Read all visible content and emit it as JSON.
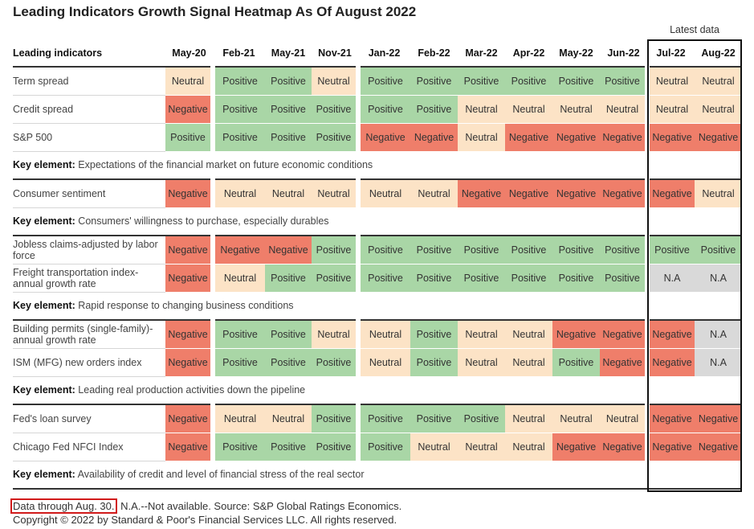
{
  "title": "Leading Indicators Growth Signal Heatmap As Of August 2022",
  "latest_label": "Latest data",
  "chart_data": {
    "type": "table",
    "row_header": "Leading indicators",
    "columns": [
      "May-20",
      "Feb-21",
      "May-21",
      "Nov-21",
      "Jan-22",
      "Feb-22",
      "Mar-22",
      "Apr-22",
      "May-22",
      "Jun-22",
      "Jul-22",
      "Aug-22"
    ],
    "groups": [
      {
        "rows": [
          {
            "name": "Term spread",
            "values": [
              "Neutral",
              "Positive",
              "Positive",
              "Neutral",
              "Positive",
              "Positive",
              "Positive",
              "Positive",
              "Positive",
              "Positive",
              "Neutral",
              "Neutral"
            ]
          },
          {
            "name": "Credit spread",
            "values": [
              "Negative",
              "Positive",
              "Positive",
              "Positive",
              "Positive",
              "Positive",
              "Neutral",
              "Neutral",
              "Neutral",
              "Neutral",
              "Neutral",
              "Neutral"
            ]
          },
          {
            "name": "S&P 500",
            "values": [
              "Positive",
              "Positive",
              "Positive",
              "Positive",
              "Negative",
              "Negative",
              "Neutral",
              "Negative",
              "Negative",
              "Negative",
              "Negative",
              "Negative"
            ]
          }
        ],
        "key_label": "Key element:",
        "key_text": "Expectations of the financial market on future economic conditions"
      },
      {
        "rows": [
          {
            "name": "Consumer sentiment",
            "values": [
              "Negative",
              "Neutral",
              "Neutral",
              "Neutral",
              "Neutral",
              "Neutral",
              "Negative",
              "Negative",
              "Negative",
              "Negative",
              "Negative",
              "Neutral"
            ]
          }
        ],
        "key_label": "Key element:",
        "key_text": "Consumers' willingness to purchase, especially durables"
      },
      {
        "rows": [
          {
            "name": "Jobless claims-adjusted by labor force",
            "values": [
              "Negative",
              "Negative",
              "Negative",
              "Positive",
              "Positive",
              "Positive",
              "Positive",
              "Positive",
              "Positive",
              "Positive",
              "Positive",
              "Positive"
            ]
          },
          {
            "name": "Freight transportation index-annual growth rate",
            "values": [
              "Negative",
              "Neutral",
              "Positive",
              "Positive",
              "Positive",
              "Positive",
              "Positive",
              "Positive",
              "Positive",
              "Positive",
              "N.A",
              "N.A"
            ]
          }
        ],
        "key_label": "Key element:",
        "key_text": "Rapid response to changing business conditions"
      },
      {
        "rows": [
          {
            "name": "Building permits (single-family)-annual growth rate",
            "values": [
              "Negative",
              "Positive",
              "Positive",
              "Neutral",
              "Neutral",
              "Positive",
              "Neutral",
              "Neutral",
              "Negative",
              "Negative",
              "Negative",
              "N.A"
            ]
          },
          {
            "name": "ISM (MFG) new orders index",
            "values": [
              "Negative",
              "Positive",
              "Positive",
              "Positive",
              "Neutral",
              "Positive",
              "Neutral",
              "Neutral",
              "Positive",
              "Negative",
              "Negative",
              "N.A"
            ]
          }
        ],
        "key_label": "Key element:",
        "key_text": "Leading real production activities down the pipeline"
      },
      {
        "rows": [
          {
            "name": "Fed's loan survey",
            "values": [
              "Negative",
              "Neutral",
              "Neutral",
              "Positive",
              "Positive",
              "Positive",
              "Positive",
              "Neutral",
              "Neutral",
              "Neutral",
              "Negative",
              "Negative"
            ]
          },
          {
            "name": "Chicago Fed NFCI Index",
            "values": [
              "Negative",
              "Positive",
              "Positive",
              "Positive",
              "Positive",
              "Neutral",
              "Neutral",
              "Neutral",
              "Negative",
              "Negative",
              "Negative",
              "Negative"
            ]
          }
        ],
        "key_label": "Key element:",
        "key_text": "Availability of credit and level of financial stress of the real sector"
      }
    ]
  },
  "footnote": {
    "highlighted": "Data through Aug. 30.",
    "rest": " N.A.--Not available. Source: S&P Global Ratings Economics.",
    "copyright": "Copyright © 2022 by Standard & Poor's Financial Services LLC. All rights reserved."
  },
  "colors": {
    "Neutral": "#fce3c6",
    "Positive": "#a9d6a6",
    "Negative": "#ef7e6a",
    "N.A": "#d9d9d9",
    "highlight_box": "#d11a1a"
  }
}
